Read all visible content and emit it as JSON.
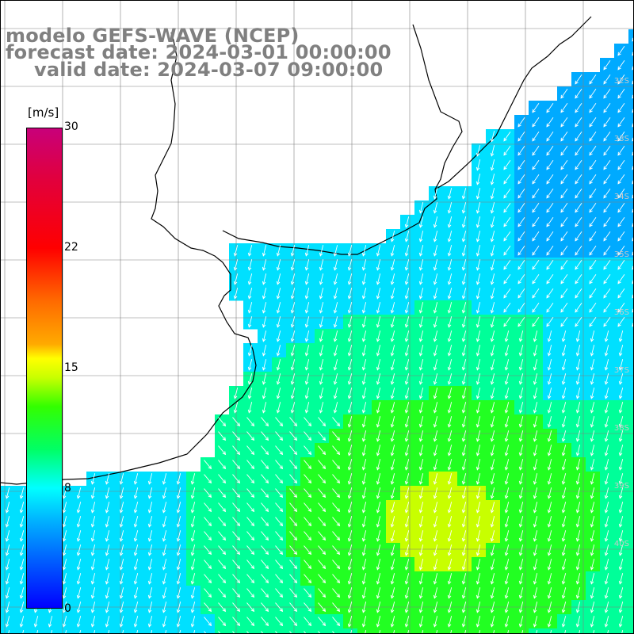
{
  "title": {
    "line1": "modelo GEFS-WAVE (NCEP)",
    "line2": "forecast date: 2024-03-01 00:00:00",
    "line3": "valid date: 2024-03-07 09:00:00"
  },
  "colorbar": {
    "unit": "[m/s]",
    "ticks": [
      "30",
      "22",
      "15",
      "8",
      "0"
    ],
    "tick_values": [
      30,
      22,
      15,
      8,
      0
    ],
    "range": [
      0,
      30
    ],
    "colors": [
      "#0000ff",
      "#0060ff",
      "#00b0ff",
      "#00ffff",
      "#00ff66",
      "#33ff00",
      "#c8ff00",
      "#ffff00",
      "#ffaa00",
      "#ff6a00",
      "#ff0000",
      "#e00040",
      "#c8007a"
    ]
  },
  "map": {
    "ocean_fill_colors": [
      "#00aaff",
      "#00e0ff",
      "#00ff99",
      "#22ff22",
      "#c8ff00"
    ],
    "land_color": "#ffffff",
    "coastline_color": "#000000",
    "grid_color": "#808080",
    "arrow_color": "#ffffff",
    "lat_labels": [
      "32S",
      "33S",
      "34S",
      "35S",
      "36S",
      "37S",
      "38S",
      "39S",
      "40S"
    ]
  }
}
